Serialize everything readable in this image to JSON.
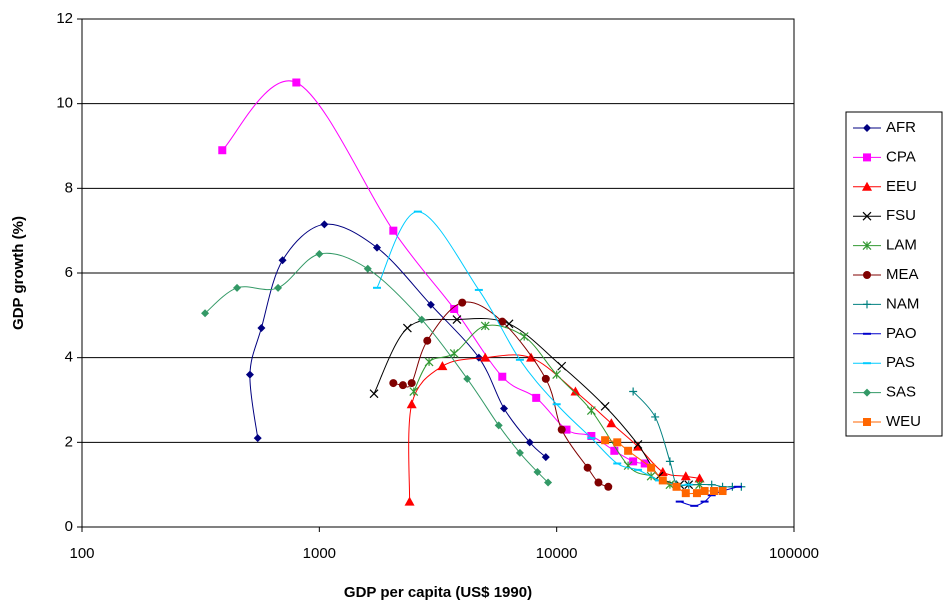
{
  "chart_data": {
    "type": "line",
    "xlabel": "GDP per capita (US$ 1990)",
    "ylabel": "GDP growth (%)",
    "xscale": "log",
    "xlim": [
      100,
      100000
    ],
    "xticks": [
      100,
      1000,
      10000,
      100000
    ],
    "ylim": [
      0,
      12
    ],
    "yticks": [
      0,
      2,
      4,
      6,
      8,
      10,
      12
    ],
    "grid": true,
    "legend": "right",
    "series": [
      {
        "name": "AFR",
        "color": "#000080",
        "marker": "diamond",
        "x": [
          550,
          510,
          570,
          700,
          1050,
          1750,
          2950,
          4700,
          6000,
          7700,
          9000
        ],
        "values": [
          2.1,
          3.6,
          4.7,
          6.3,
          7.15,
          6.6,
          5.25,
          4.0,
          2.8,
          2.0,
          1.65
        ]
      },
      {
        "name": "CPA",
        "color": "#FF00FF",
        "marker": "square",
        "x": [
          390,
          800,
          2050,
          3700,
          5900,
          8200,
          11000,
          14000,
          17500,
          21000,
          23500
        ],
        "values": [
          8.9,
          10.5,
          7.0,
          5.15,
          3.55,
          3.05,
          2.3,
          2.15,
          1.8,
          1.55,
          1.5
        ]
      },
      {
        "name": "EEU",
        "color": "#FF0000",
        "marker": "triangle",
        "x": [
          2400,
          2450,
          3300,
          5000,
          7800,
          12000,
          17000,
          22000,
          28000,
          35000,
          40000
        ],
        "values": [
          0.6,
          2.9,
          3.8,
          4.0,
          4.0,
          3.2,
          2.45,
          1.9,
          1.3,
          1.2,
          1.15
        ]
      },
      {
        "name": "FSU",
        "color": "#000000",
        "marker": "x",
        "x": [
          1700,
          2350,
          3800,
          6300,
          10500,
          16000,
          22000,
          27000,
          33000,
          36000
        ],
        "values": [
          3.15,
          4.7,
          4.9,
          4.8,
          3.8,
          2.85,
          1.95,
          1.2,
          1.0,
          1.0
        ]
      },
      {
        "name": "LAM",
        "color": "#339933",
        "marker": "asterisk",
        "x": [
          2500,
          2900,
          3700,
          5000,
          7300,
          10000,
          14000,
          20000,
          25000,
          30000,
          40000
        ],
        "values": [
          3.2,
          3.9,
          4.1,
          4.75,
          4.5,
          3.6,
          2.75,
          1.45,
          1.2,
          1.0,
          1.0
        ]
      },
      {
        "name": "MEA",
        "color": "#800000",
        "marker": "circle",
        "x": [
          2050,
          2250,
          2450,
          2850,
          4000,
          5900,
          9000,
          10500,
          13500,
          15000,
          16500
        ],
        "values": [
          3.4,
          3.35,
          3.4,
          4.4,
          5.3,
          4.85,
          3.5,
          2.3,
          1.4,
          1.05,
          0.95
        ]
      },
      {
        "name": "NAM",
        "color": "#008080",
        "marker": "plus",
        "x": [
          21000,
          26000,
          30000,
          32000,
          36000,
          45000,
          50000,
          55000,
          60000
        ],
        "values": [
          3.2,
          2.6,
          1.55,
          1.0,
          1.0,
          1.0,
          0.95,
          0.95,
          0.95
        ]
      },
      {
        "name": "PAO",
        "color": "#0000CC",
        "marker": "dash",
        "x": [
          33000,
          38000,
          42000,
          45000,
          50000,
          58000
        ],
        "values": [
          0.6,
          0.5,
          0.6,
          0.75,
          0.85,
          0.95
        ]
      },
      {
        "name": "PAS",
        "color": "#00CCFF",
        "marker": "dash",
        "x": [
          1750,
          2600,
          4700,
          7000,
          10000,
          14000,
          18000,
          22000,
          27000,
          32000,
          36000
        ],
        "values": [
          5.65,
          7.45,
          5.6,
          3.95,
          2.9,
          2.1,
          1.5,
          1.35,
          1.1,
          1.0,
          1.0
        ]
      },
      {
        "name": "SAS",
        "color": "#339966",
        "marker": "diamond",
        "x": [
          330,
          450,
          670,
          1000,
          1600,
          2700,
          4200,
          5700,
          7000,
          8300,
          9200
        ],
        "values": [
          5.05,
          5.65,
          5.65,
          6.45,
          6.1,
          4.9,
          3.5,
          2.4,
          1.75,
          1.3,
          1.05
        ]
      },
      {
        "name": "WEU",
        "color": "#FF6600",
        "marker": "square",
        "x": [
          16000,
          18000,
          20000,
          25000,
          28000,
          32000,
          35000,
          39000,
          42000,
          46000,
          50000
        ],
        "values": [
          2.05,
          2.0,
          1.8,
          1.4,
          1.1,
          0.95,
          0.8,
          0.8,
          0.85,
          0.85,
          0.85
        ]
      }
    ]
  }
}
